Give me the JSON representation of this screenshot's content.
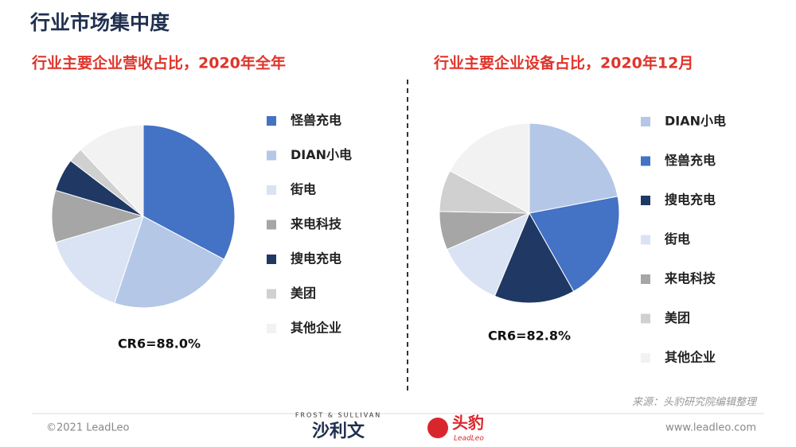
{
  "header": {
    "title": "行业市场集中度"
  },
  "chart_data": [
    {
      "type": "pie",
      "title": "行业主要企业营收占比，2020年全年",
      "categories": [
        "怪兽充电",
        "DIAN小电",
        "街电",
        "来电科技",
        "搜电充电",
        "美团",
        "其他企业"
      ],
      "values": [
        32.8,
        22.3,
        15.3,
        9.2,
        5.8,
        2.6,
        12.0
      ],
      "colors": [
        "#4472c4",
        "#b4c7e7",
        "#dae3f3",
        "#a6a6a6",
        "#1f3864",
        "#d0d0d0",
        "#f2f2f2"
      ],
      "annotation": "CR6=88.0%"
    },
    {
      "type": "pie",
      "title": "行业主要企业设备占比，2020年12月",
      "categories": [
        "DIAN小电",
        "怪兽充电",
        "搜电充电",
        "街电",
        "来电科技",
        "美团",
        "其他企业"
      ],
      "values": [
        22.0,
        19.8,
        14.5,
        12.1,
        6.9,
        7.5,
        17.2
      ],
      "colors": [
        "#b4c7e7",
        "#4472c4",
        "#1f3864",
        "#dae3f3",
        "#a6a6a6",
        "#d0d0d0",
        "#f2f2f2"
      ],
      "annotation": "CR6=82.8%"
    }
  ],
  "footer": {
    "source": "来源：头豹研究院编辑整理",
    "copyright": "©2021 LeadLeo",
    "website": "www.leadleo.com",
    "frost": "FROST & SULLIVAN",
    "frost_cn": "沙利文",
    "leadleo_cn": "头豹",
    "leadleo_en": "LeadLeo"
  }
}
